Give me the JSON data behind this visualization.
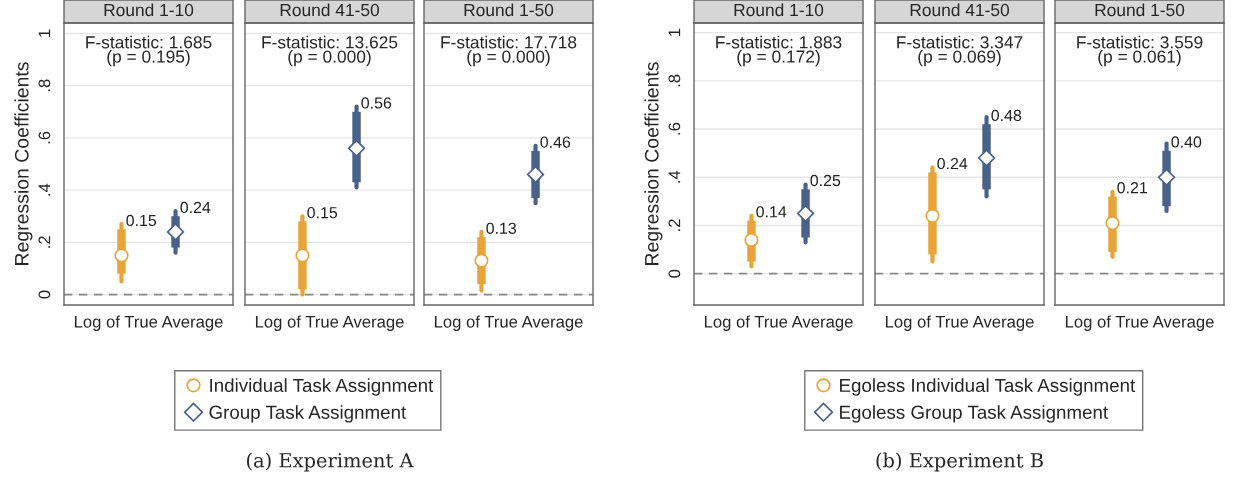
{
  "chart_data": [
    {
      "type": "box",
      "title": "Round 1-10",
      "ylabel": "Regression Coefficients",
      "categories": [
        "Log of True Average"
      ],
      "ylim": [
        -0.04,
        1.04
      ],
      "yticks": [
        0,
        {
          "value": 0.2,
          "label": ".2"
        },
        {
          "value": 0.4,
          "label": ".4"
        },
        {
          "value": 0.6,
          "label": ".6"
        },
        {
          "value": 0.8,
          "label": ".8"
        },
        1
      ],
      "grid": "y",
      "legend": "bottom",
      "annotations": [
        "F-statistic: 1.685\n(p = 0.195)"
      ],
      "ref_lines": [
        {
          "axis": "y",
          "value": 0,
          "color": "#888888",
          "line_style": "dashed"
        }
      ],
      "series": [
        {
          "name": "Individual Task Assignment",
          "color": "#e8a33a",
          "marker": "circle",
          "value_labels": [
            "0.15"
          ],
          "boxes": [
            {
              "low": 0.05,
              "q1": 0.08,
              "median": 0.15,
              "q3": 0.25,
              "high": 0.27
            }
          ]
        },
        {
          "name": "Group Task Assignment",
          "color": "#4a6289",
          "marker": "diamond",
          "value_labels": [
            "0.24"
          ],
          "boxes": [
            {
              "low": 0.16,
              "q1": 0.18,
              "median": 0.24,
              "q3": 0.3,
              "high": 0.32
            }
          ]
        }
      ]
    },
    {
      "type": "box",
      "title": "Round 41-50",
      "categories": [
        "Log of True Average"
      ],
      "ylim": [
        -0.04,
        1.04
      ],
      "yticks": [
        {
          "value": 0,
          "label": null
        },
        {
          "value": 0.2,
          "label": null
        },
        {
          "value": 0.4,
          "label": null
        },
        {
          "value": 0.6,
          "label": null
        },
        {
          "value": 0.8,
          "label": null
        },
        {
          "value": 1,
          "label": null
        }
      ],
      "grid": "y",
      "tick_labels": "x",
      "annotations": [
        "F-statistic: 13.625\n(p = 0.000)",
        "(a) Experiment A"
      ],
      "ref_lines": [
        {
          "axis": "y",
          "value": 0,
          "color": "#888888",
          "line_style": "dashed"
        }
      ],
      "series": [
        {
          "color": "#e8a33a",
          "marker": "circle",
          "value_labels": [
            "0.15"
          ],
          "boxes": [
            {
              "low": 0.0,
              "q1": 0.02,
              "median": 0.15,
              "q3": 0.28,
              "high": 0.3
            }
          ]
        },
        {
          "color": "#4a6289",
          "marker": "diamond",
          "value_labels": [
            "0.56"
          ],
          "boxes": [
            {
              "low": 0.41,
              "q1": 0.43,
              "median": 0.56,
              "q3": 0.7,
              "high": 0.72
            }
          ]
        }
      ]
    },
    {
      "type": "box",
      "title": "Round 1-50",
      "categories": [
        "Log of True Average"
      ],
      "ylim": [
        -0.04,
        1.04
      ],
      "yticks": [
        {
          "value": 0,
          "label": null
        },
        {
          "value": 0.2,
          "label": null
        },
        {
          "value": 0.4,
          "label": null
        },
        {
          "value": 0.6,
          "label": null
        },
        {
          "value": 0.8,
          "label": null
        },
        {
          "value": 1,
          "label": null
        }
      ],
      "grid": "y",
      "tick_labels": "x",
      "annotations": [
        "F-statistic: 17.718\n(p = 0.000)"
      ],
      "ref_lines": [
        {
          "axis": "y",
          "value": 0,
          "color": "#888888",
          "line_style": "dashed"
        }
      ],
      "series": [
        {
          "color": "#e8a33a",
          "marker": "circle",
          "value_labels": [
            "0.13"
          ],
          "boxes": [
            {
              "low": 0.015,
              "q1": 0.04,
              "median": 0.13,
              "q3": 0.22,
              "high": 0.24
            }
          ]
        },
        {
          "color": "#4a6289",
          "marker": "diamond",
          "value_labels": [
            "0.46"
          ],
          "boxes": [
            {
              "low": 0.35,
              "q1": 0.37,
              "median": 0.46,
              "q3": 0.55,
              "high": 0.57
            }
          ]
        }
      ]
    },
    {
      "type": "box",
      "title": "Round 1-10",
      "ylabel": "Regression Coefficients",
      "categories": [
        "Log of True Average"
      ],
      "ylim": [
        -0.13,
        1.04
      ],
      "yticks": [
        0,
        {
          "value": 0.2,
          "label": ".2"
        },
        {
          "value": 0.4,
          "label": ".4"
        },
        {
          "value": 0.6,
          "label": ".6"
        },
        {
          "value": 0.8,
          "label": ".8"
        },
        1
      ],
      "grid": "y",
      "legend": "bottom",
      "annotations": [
        "F-statistic: 1.883\n(p = 0.172)"
      ],
      "ref_lines": [
        {
          "axis": "y",
          "value": 0,
          "color": "#888888",
          "line_style": "dashed"
        }
      ],
      "series": [
        {
          "name": "Egoless Individual Task Assignment",
          "color": "#e8a33a",
          "marker": "circle",
          "value_labels": [
            "0.14"
          ],
          "boxes": [
            {
              "low": 0.03,
              "q1": 0.05,
              "median": 0.14,
              "q3": 0.22,
              "high": 0.24
            }
          ]
        },
        {
          "name": "Egoless Group Task Assignment",
          "color": "#4a6289",
          "marker": "diamond",
          "value_labels": [
            "0.25"
          ],
          "boxes": [
            {
              "low": 0.13,
              "q1": 0.15,
              "median": 0.25,
              "q3": 0.35,
              "high": 0.37
            }
          ]
        }
      ]
    },
    {
      "type": "box",
      "title": "Round 41-50",
      "categories": [
        "Log of True Average"
      ],
      "ylim": [
        -0.13,
        1.04
      ],
      "yticks": [
        {
          "value": 0,
          "label": null
        },
        {
          "value": 0.2,
          "label": null
        },
        {
          "value": 0.4,
          "label": null
        },
        {
          "value": 0.6,
          "label": null
        },
        {
          "value": 0.8,
          "label": null
        },
        {
          "value": 1,
          "label": null
        }
      ],
      "grid": "y",
      "tick_labels": "x",
      "annotations": [
        "F-statistic: 3.347\n(p = 0.069)",
        "(b) Experiment B"
      ],
      "ref_lines": [
        {
          "axis": "y",
          "value": 0,
          "color": "#888888",
          "line_style": "dashed"
        }
      ],
      "series": [
        {
          "color": "#e8a33a",
          "marker": "circle",
          "value_labels": [
            "0.24"
          ],
          "boxes": [
            {
              "low": 0.05,
              "q1": 0.08,
              "median": 0.24,
              "q3": 0.42,
              "high": 0.44
            }
          ]
        },
        {
          "color": "#4a6289",
          "marker": "diamond",
          "value_labels": [
            "0.48"
          ],
          "boxes": [
            {
              "low": 0.32,
              "q1": 0.35,
              "median": 0.48,
              "q3": 0.62,
              "high": 0.65
            }
          ]
        }
      ]
    },
    {
      "type": "box",
      "title": "Round 1-50",
      "categories": [
        "Log of True Average"
      ],
      "ylim": [
        -0.13,
        1.04
      ],
      "yticks": [
        {
          "value": 0,
          "label": null
        },
        {
          "value": 0.2,
          "label": null
        },
        {
          "value": 0.4,
          "label": null
        },
        {
          "value": 0.6,
          "label": null
        },
        {
          "value": 0.8,
          "label": null
        },
        {
          "value": 1,
          "label": null
        }
      ],
      "grid": "y",
      "tick_labels": "x",
      "annotations": [
        "F-statistic: 3.559\n(p = 0.061)"
      ],
      "ref_lines": [
        {
          "axis": "y",
          "value": 0,
          "color": "#888888",
          "line_style": "dashed"
        }
      ],
      "series": [
        {
          "color": "#e8a33a",
          "marker": "circle",
          "value_labels": [
            "0.21"
          ],
          "boxes": [
            {
              "low": 0.07,
              "q1": 0.09,
              "median": 0.21,
              "q3": 0.32,
              "high": 0.34
            }
          ]
        },
        {
          "color": "#4a6289",
          "marker": "diamond",
          "value_labels": [
            "0.40"
          ],
          "boxes": [
            {
              "low": 0.26,
              "q1": 0.28,
              "median": 0.4,
              "q3": 0.51,
              "high": 0.54
            }
          ]
        }
      ]
    }
  ]
}
